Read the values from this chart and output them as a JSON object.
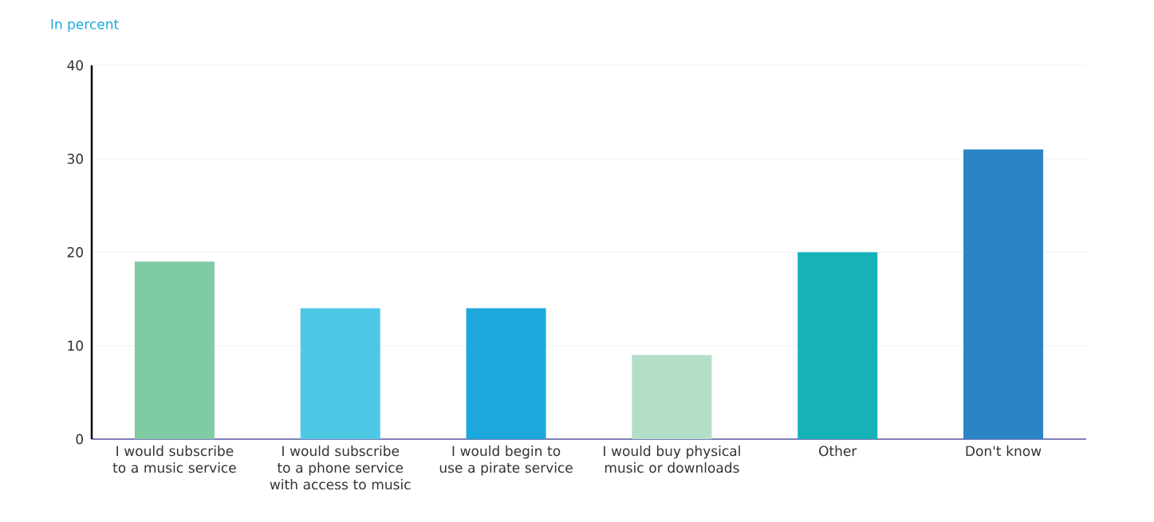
{
  "chart_data": {
    "type": "bar",
    "title": "In percent",
    "categories": [
      "I would subscribe to a music service",
      "I would subscribe to a phone service with access to music",
      "I would begin to use a pirate service",
      "I would buy physical music or downloads",
      "Other",
      "Don't know"
    ],
    "values": [
      19,
      14,
      14,
      9,
      20,
      31
    ],
    "colors": [
      "#7fcba4",
      "#4fc8e6",
      "#1ca7dd",
      "#b3dec8",
      "#15b3b8",
      "#2b84c6"
    ],
    "ylim": [
      0,
      40
    ],
    "yticks": [
      0,
      10,
      20,
      30,
      40
    ],
    "grid": "y"
  }
}
